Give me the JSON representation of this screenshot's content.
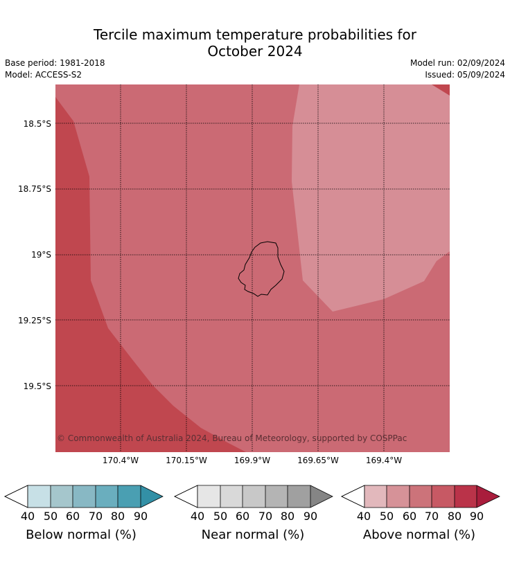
{
  "title": {
    "line1": "Tercile maximum temperature probabilities for",
    "line2": "October 2024"
  },
  "meta": {
    "base_period": "Base period: 1981-2018",
    "model": "Model: ACCESS-S2",
    "model_run": "Model run: 02/09/2024",
    "issued": "Issued: 05/09/2024"
  },
  "map": {
    "latitudes": [
      "18.5°S",
      "18.75°S",
      "19°S",
      "19.25°S",
      "19.5°S"
    ],
    "longitudes": [
      "170.4°W",
      "170.15°W",
      "169.9°W",
      "169.65°W",
      "169.4°W"
    ],
    "copyright": "© Commonwealth of Australia 2024, Bureau of Meteorology, supported by COSPPac",
    "colors": {
      "above_70_80": "#c0474f",
      "above_60_70": "#cb6a74",
      "above_50_60": "#d68e96",
      "coastline": "#000000"
    }
  },
  "legends": [
    {
      "title": "Below normal (%)",
      "ticks": [
        "40",
        "50",
        "60",
        "70",
        "80",
        "90"
      ],
      "colors": [
        "#ffffff",
        "#c7e0e6",
        "#a5c6cc",
        "#88b8c4",
        "#6aaebe",
        "#4a9fb2",
        "#3390a6"
      ]
    },
    {
      "title": "Near normal (%)",
      "ticks": [
        "40",
        "50",
        "60",
        "70",
        "80",
        "90"
      ],
      "colors": [
        "#ffffff",
        "#e6e6e6",
        "#d9d9d9",
        "#c8c8c8",
        "#b4b4b4",
        "#a0a0a0",
        "#858585"
      ]
    },
    {
      "title": "Above normal (%)",
      "ticks": [
        "40",
        "50",
        "60",
        "70",
        "80",
        "90"
      ],
      "colors": [
        "#ffffff",
        "#e2b8bc",
        "#d69298",
        "#cc737a",
        "#c75964",
        "#ba3349",
        "#a91d3c"
      ]
    }
  ]
}
